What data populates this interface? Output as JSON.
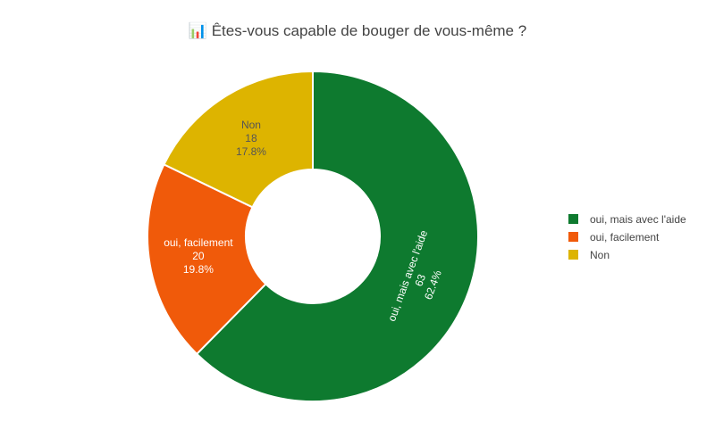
{
  "title": "📊 Êtes-vous capable de bouger de vous-même ?",
  "chart_data": {
    "type": "pie",
    "donut": true,
    "categories": [
      "oui, mais avec l'aide",
      "oui, facilement",
      "Non"
    ],
    "values": [
      63,
      20,
      18
    ],
    "percent_labels": [
      "62.4%",
      "19.8%",
      "17.8%"
    ],
    "colors": [
      "#0e7a2f",
      "#f05a0a",
      "#ddb400"
    ],
    "label_colors": [
      "#ffffff",
      "#ffffff",
      "#555555"
    ],
    "legend": {
      "placement": "right",
      "entries": [
        "oui, mais avec l'aide",
        "oui, facilement",
        "Non"
      ]
    }
  }
}
